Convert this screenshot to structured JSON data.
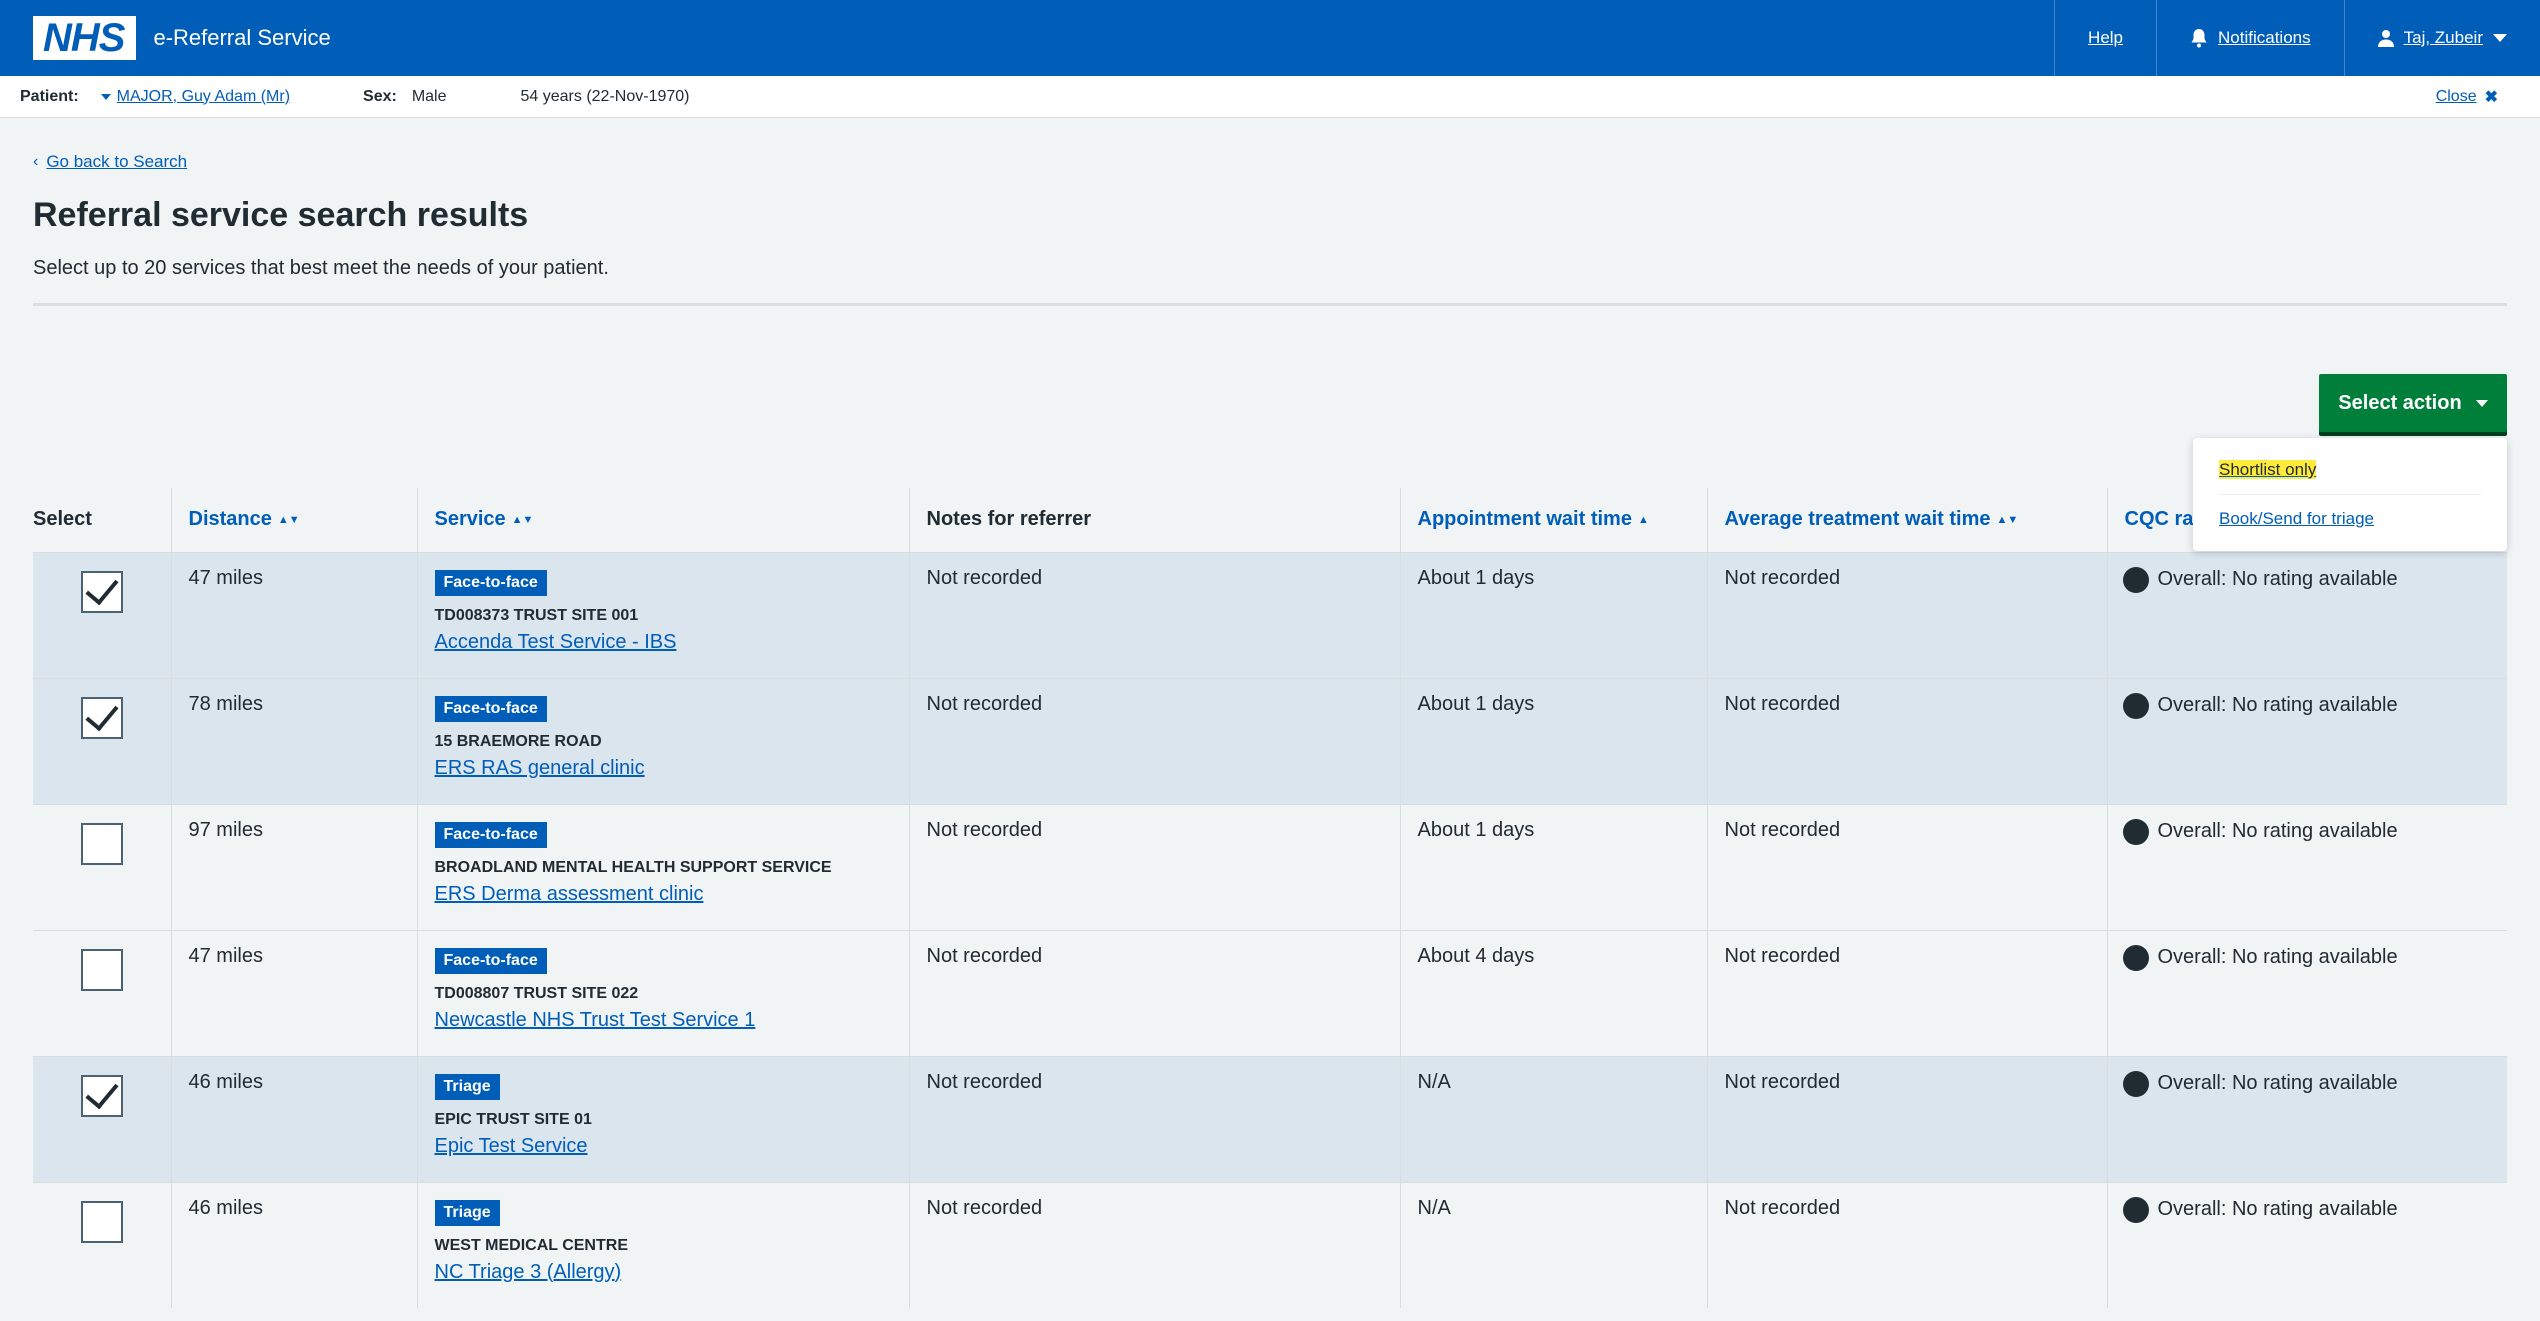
{
  "header": {
    "logo": "NHS",
    "service_name": "e-Referral Service",
    "help": "Help",
    "notifications": "Notifications",
    "user": "Taj, Zubeir"
  },
  "patient": {
    "patient_label": "Patient:",
    "name": "MAJOR, Guy Adam (Mr)",
    "sex_label": "Sex:",
    "sex": "Male",
    "age": "54 years (22-Nov-1970)",
    "close": "Close"
  },
  "page": {
    "back": "Go back to Search",
    "title": "Referral service search results",
    "lede": "Select up to 20 services that best meet the needs of your patient."
  },
  "actions": {
    "select_action": "Select action",
    "menu": [
      "Shortlist only",
      "Book/Send for triage"
    ]
  },
  "table": {
    "headers": {
      "select": "Select",
      "distance": "Distance",
      "service": "Service",
      "notes": "Notes for referrer",
      "appt_wait": "Appointment wait time",
      "avg_wait": "Average treatment wait time",
      "cqc": "CQC rating"
    },
    "rows": [
      {
        "checked": true,
        "distance": "47 miles",
        "type": "Face-to-face",
        "site": "TD008373 TRUST SITE 001",
        "service": "Accenda Test Service - IBS",
        "notes": "Not recorded",
        "appt": "About 1 days",
        "avg": "Not recorded",
        "cqc": "Overall: No rating available"
      },
      {
        "checked": true,
        "distance": "78 miles",
        "type": "Face-to-face",
        "site": "15 BRAEMORE ROAD",
        "service": "ERS RAS general clinic",
        "notes": "Not recorded",
        "appt": "About 1 days",
        "avg": "Not recorded",
        "cqc": "Overall: No rating available"
      },
      {
        "checked": false,
        "distance": "97 miles",
        "type": "Face-to-face",
        "site": "BROADLAND MENTAL HEALTH SUPPORT SERVICE",
        "service": "ERS Derma assessment clinic",
        "notes": "Not recorded",
        "appt": "About 1 days",
        "avg": "Not recorded",
        "cqc": "Overall: No rating available"
      },
      {
        "checked": false,
        "distance": "47 miles",
        "type": "Face-to-face",
        "site": "TD008807 TRUST SITE 022",
        "service": "Newcastle NHS Trust Test Service 1",
        "notes": "Not recorded",
        "appt": "About 4 days",
        "avg": "Not recorded",
        "cqc": "Overall: No rating available"
      },
      {
        "checked": true,
        "distance": "46 miles",
        "type": "Triage",
        "site": "EPIC TRUST SITE 01",
        "service": "Epic Test Service",
        "notes": "Not recorded",
        "appt": "N/A",
        "avg": "Not recorded",
        "cqc": "Overall: No rating available"
      },
      {
        "checked": false,
        "distance": "46 miles",
        "type": "Triage",
        "site": "WEST MEDICAL CENTRE",
        "service": "NC Triage 3 (Allergy)",
        "notes": "Not recorded",
        "appt": "N/A",
        "avg": "Not recorded",
        "cqc": "Overall: No rating available"
      }
    ]
  },
  "colors": {
    "nhs_blue": "#005eb8",
    "action_green": "#007f3b",
    "selected_row": "#dbe5ee",
    "highlight": "#ffeb3b"
  }
}
